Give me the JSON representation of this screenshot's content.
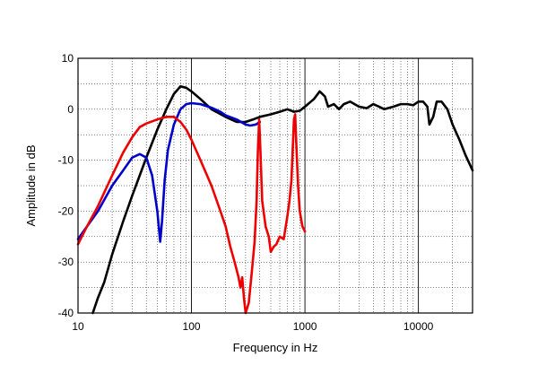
{
  "chart_data": {
    "type": "line",
    "title": "",
    "xlabel": "Frequency  in Hz",
    "ylabel": "Amplitude in dB",
    "x_scale": "log",
    "xlim": [
      10,
      30000
    ],
    "ylim": [
      -40,
      10
    ],
    "x_ticks": [
      10,
      100,
      1000,
      10000
    ],
    "x_tick_labels": [
      "10",
      "100",
      "1000",
      "10000"
    ],
    "y_ticks": [
      10,
      0,
      -10,
      -20,
      -30,
      -40
    ],
    "y_tick_labels": [
      "10",
      "0",
      "-10",
      "-20",
      "-30",
      "-40"
    ],
    "grid": true,
    "legend": "none",
    "series": [
      {
        "color": "#000000",
        "points": [
          [
            13.5,
            -40
          ],
          [
            15,
            -37
          ],
          [
            17,
            -34
          ],
          [
            20,
            -28.5
          ],
          [
            25,
            -22
          ],
          [
            30,
            -17
          ],
          [
            40,
            -9.5
          ],
          [
            50,
            -4
          ],
          [
            60,
            0
          ],
          [
            70,
            3
          ],
          [
            80,
            4.5
          ],
          [
            90,
            4.2
          ],
          [
            100,
            3.5
          ],
          [
            120,
            2
          ],
          [
            150,
            0
          ],
          [
            200,
            -1.5
          ],
          [
            250,
            -2.5
          ],
          [
            300,
            -2.5
          ],
          [
            350,
            -2
          ],
          [
            400,
            -1.5
          ],
          [
            500,
            -1
          ],
          [
            600,
            -0.5
          ],
          [
            700,
            0
          ],
          [
            800,
            -0.5
          ],
          [
            900,
            -0.3
          ],
          [
            1000,
            0.5
          ],
          [
            1200,
            2
          ],
          [
            1350,
            3.5
          ],
          [
            1500,
            2.5
          ],
          [
            1600,
            0.5
          ],
          [
            1800,
            1
          ],
          [
            2000,
            0
          ],
          [
            2200,
            1
          ],
          [
            2500,
            1.5
          ],
          [
            3000,
            0.5
          ],
          [
            3500,
            0.2
          ],
          [
            4000,
            1
          ],
          [
            4500,
            0.5
          ],
          [
            5000,
            0
          ],
          [
            6000,
            0.5
          ],
          [
            7000,
            1
          ],
          [
            8000,
            1
          ],
          [
            9000,
            0.8
          ],
          [
            10000,
            1.5
          ],
          [
            11000,
            1.5
          ],
          [
            12000,
            0.5
          ],
          [
            12500,
            -3
          ],
          [
            13500,
            -1.5
          ],
          [
            14500,
            1.5
          ],
          [
            16000,
            1.5
          ],
          [
            18000,
            0
          ],
          [
            20000,
            -3
          ],
          [
            23000,
            -6
          ],
          [
            26000,
            -9
          ],
          [
            30000,
            -12
          ]
        ]
      },
      {
        "color": "#0000cc",
        "points": [
          [
            10,
            -25.5
          ],
          [
            12,
            -23
          ],
          [
            15,
            -20
          ],
          [
            20,
            -15
          ],
          [
            25,
            -12
          ],
          [
            30,
            -9.5
          ],
          [
            35,
            -8.8
          ],
          [
            40,
            -9.5
          ],
          [
            45,
            -13
          ],
          [
            50,
            -20
          ],
          [
            53,
            -26
          ],
          [
            55,
            -22
          ],
          [
            58,
            -14
          ],
          [
            62,
            -8
          ],
          [
            70,
            -3
          ],
          [
            80,
            0
          ],
          [
            90,
            1
          ],
          [
            100,
            1.2
          ],
          [
            120,
            1
          ],
          [
            150,
            0.3
          ],
          [
            180,
            -0.5
          ],
          [
            200,
            -1.2
          ],
          [
            250,
            -2
          ],
          [
            300,
            -3
          ],
          [
            330,
            -3.2
          ],
          [
            370,
            -3
          ],
          [
            400,
            -2.5
          ]
        ]
      },
      {
        "color": "#ee0000",
        "points": [
          [
            10,
            -26.5
          ],
          [
            12,
            -23
          ],
          [
            15,
            -19
          ],
          [
            20,
            -13
          ],
          [
            25,
            -8.5
          ],
          [
            30,
            -5.5
          ],
          [
            35,
            -3.5
          ],
          [
            40,
            -2.8
          ],
          [
            50,
            -2
          ],
          [
            60,
            -1.5
          ],
          [
            70,
            -1.5
          ],
          [
            80,
            -2.5
          ],
          [
            90,
            -4
          ],
          [
            100,
            -6
          ],
          [
            120,
            -10
          ],
          [
            150,
            -15
          ],
          [
            180,
            -20
          ],
          [
            200,
            -23
          ],
          [
            220,
            -27
          ],
          [
            240,
            -30
          ],
          [
            260,
            -33
          ],
          [
            270,
            -35
          ],
          [
            280,
            -33
          ],
          [
            290,
            -37
          ],
          [
            300,
            -40
          ],
          [
            320,
            -38
          ],
          [
            340,
            -32
          ],
          [
            360,
            -26
          ],
          [
            375,
            -18
          ],
          [
            385,
            -8
          ],
          [
            395,
            -2
          ],
          [
            405,
            -8
          ],
          [
            420,
            -18
          ],
          [
            450,
            -23
          ],
          [
            480,
            -25
          ],
          [
            500,
            -28
          ],
          [
            530,
            -27
          ],
          [
            560,
            -26.5
          ],
          [
            600,
            -25
          ],
          [
            650,
            -25.5
          ],
          [
            700,
            -21
          ],
          [
            730,
            -18
          ],
          [
            760,
            -14
          ],
          [
            780,
            -8
          ],
          [
            800,
            -2
          ],
          [
            820,
            -1
          ],
          [
            840,
            -7
          ],
          [
            870,
            -15
          ],
          [
            900,
            -20
          ],
          [
            950,
            -23
          ],
          [
            1000,
            -24
          ]
        ]
      }
    ]
  }
}
